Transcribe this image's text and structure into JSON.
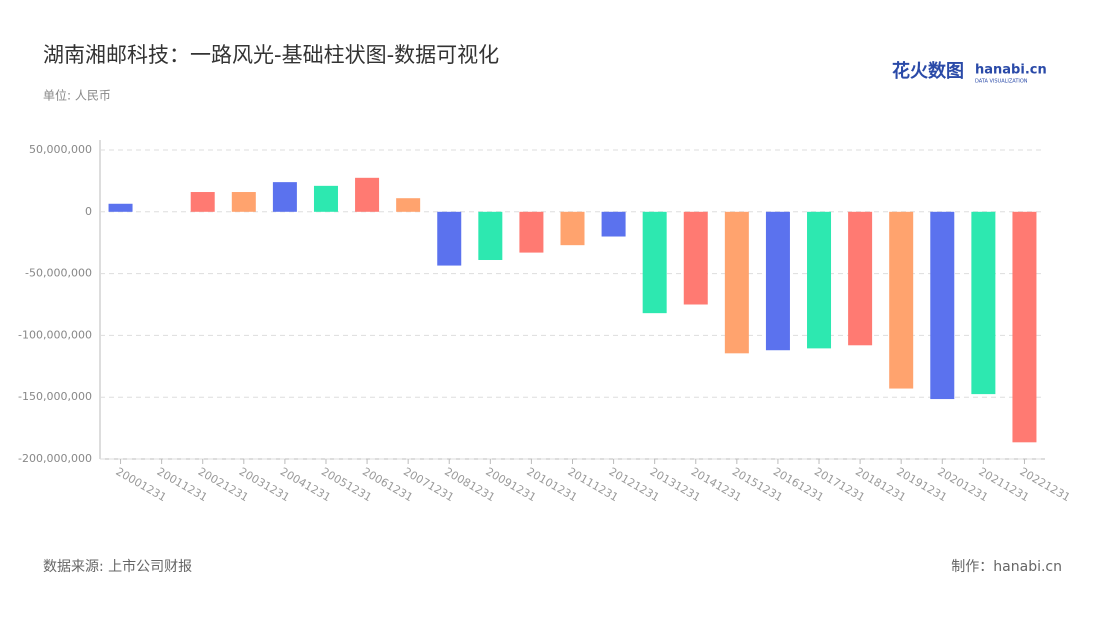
{
  "chart_data": {
    "type": "bar",
    "title": "湖南湘邮科技：一路风光-基础柱状图-数据可视化",
    "subtitle": "单位: 人民币",
    "source": "数据来源: 上市公司财报",
    "credit": "制作：hanabi.cn",
    "logo": {
      "brand": "花火数图",
      "site": "hanabi.cn",
      "tagline": "DATA VISUALIZATION"
    },
    "categories": [
      "20001231",
      "20011231",
      "20021231",
      "20031231",
      "20041231",
      "20051231",
      "20061231",
      "20071231",
      "20081231",
      "20091231",
      "20101231",
      "20111231",
      "20121231",
      "20131231",
      "20141231",
      "20151231",
      "20161231",
      "20171231",
      "20181231",
      "20191231",
      "20201231",
      "20211231",
      "20221231"
    ],
    "values": [
      6500000,
      0,
      16000000,
      16000000,
      24000000,
      21000000,
      27500000,
      11000000,
      -43500000,
      -39000000,
      -33000000,
      -27000000,
      -20000000,
      -82000000,
      -75000000,
      -114500000,
      -112000000,
      -110500000,
      -108000000,
      -143000000,
      -151500000,
      -147500000,
      -186500000
    ],
    "colors": [
      "#5b72ee",
      "#2de8b0",
      "#ff7a72",
      "#ffa36e"
    ],
    "ylim": [
      -200000000,
      50000000
    ],
    "yticks": [
      {
        "value": -200000000,
        "label": "-200,000,000"
      },
      {
        "value": -150000000,
        "label": "-150,000,000"
      },
      {
        "value": -100000000,
        "label": "-100,000,000"
      },
      {
        "value": -50000000,
        "label": "-50,000,000"
      },
      0,
      {
        "value": 50000000,
        "label": "50,000,000"
      }
    ],
    "grid": true
  }
}
